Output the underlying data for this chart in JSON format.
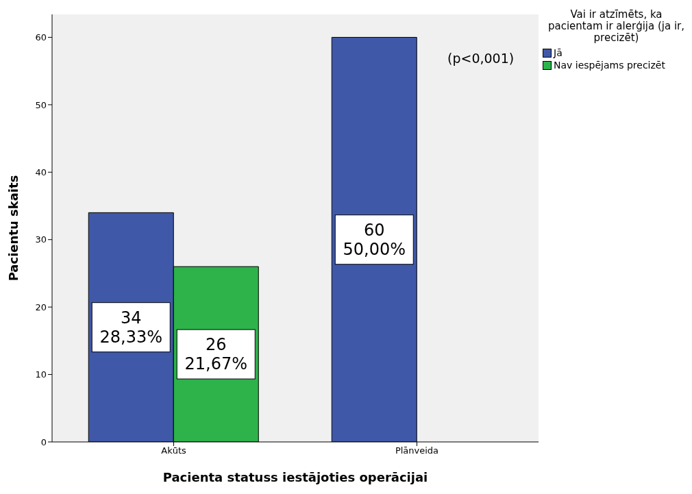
{
  "chart_data": {
    "type": "bar",
    "xlabel": "Pacienta statuss iestājoties operācijai",
    "ylabel": "Pacientu skaits",
    "legend_title": "Vai ir atzīmēts, ka pacientam ir alerģija (ja ir, precizēt)",
    "categories": [
      "Akūts",
      "Plānveida"
    ],
    "series": [
      {
        "name": "Jā",
        "color": "#3f58a8",
        "values": [
          34,
          60
        ],
        "value_labels": [
          "34\n28,33%",
          "60\n50,00%"
        ]
      },
      {
        "name": "Nav iespējams precizēt",
        "color": "#2db34a",
        "values": [
          26,
          null
        ],
        "value_labels": [
          "26\n21,67%",
          null
        ]
      }
    ],
    "ylim": [
      0,
      63.4
    ],
    "yticks": [
      0,
      10,
      20,
      30,
      40,
      50,
      60
    ],
    "grid": false,
    "legend": "top right",
    "annotations": [
      "(p<0,001)"
    ]
  }
}
